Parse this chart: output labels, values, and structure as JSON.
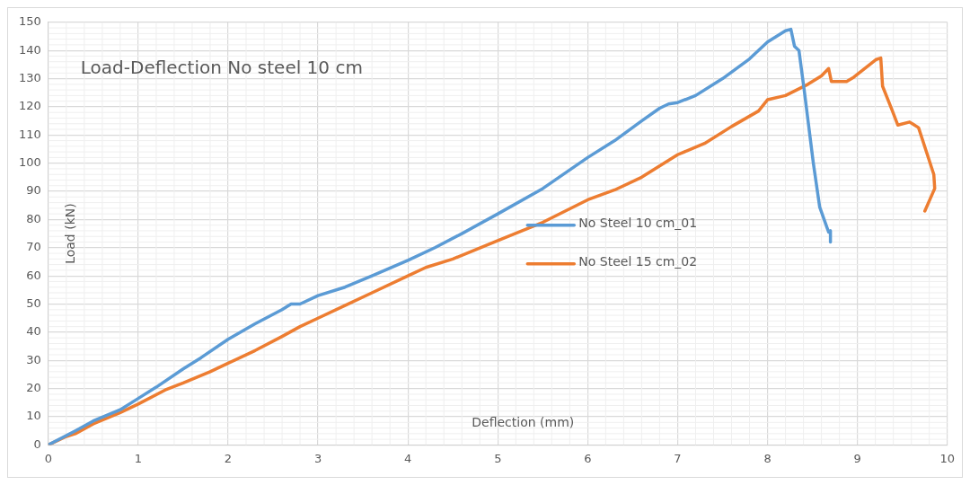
{
  "chart_data": {
    "type": "line",
    "title": "Load-Deflection No steel 10 cm",
    "xlabel": "Deflection (mm)",
    "ylabel": "Load (kN)",
    "xlim": [
      0,
      10
    ],
    "xticks": [
      0,
      1,
      2,
      3,
      4,
      5,
      6,
      7,
      8,
      9,
      10
    ],
    "ylim": [
      0,
      150
    ],
    "yticks": [
      0,
      10,
      20,
      30,
      40,
      50,
      60,
      70,
      80,
      90,
      100,
      110,
      120,
      130,
      140,
      150
    ],
    "grid": true,
    "legend": "center",
    "marker": "none",
    "line_style": "solid",
    "series": [
      {
        "name": "No Steel 10 cm_01",
        "color": "#5b9bd5",
        "x": [
          0,
          0.3,
          0.5,
          0.8,
          1.0,
          1.2,
          1.5,
          1.7,
          2.0,
          2.3,
          2.6,
          2.7,
          2.8,
          3.0,
          3.3,
          3.6,
          4.0,
          4.3,
          4.6,
          5.0,
          5.5,
          6.0,
          6.3,
          6.6,
          6.8,
          6.9,
          7.0,
          7.2,
          7.5,
          7.8,
          8.0,
          8.2,
          8.26,
          8.3,
          8.35,
          8.41,
          8.51,
          8.58,
          8.68,
          8.7,
          8.7
        ],
        "values": [
          0,
          5,
          8.5,
          12.5,
          16.5,
          20.5,
          27,
          31,
          37.5,
          43,
          48,
          50,
          50,
          53,
          56,
          60,
          65.5,
          70,
          75,
          82,
          91,
          102,
          108,
          115,
          119.5,
          121,
          121.5,
          124,
          130,
          137,
          143,
          147,
          147.5,
          141.5,
          140,
          125.5,
          100,
          84.5,
          75.5,
          76,
          72
        ]
      },
      {
        "name": "No Steel 15 cm_02",
        "color": "#ed7d31",
        "x": [
          0,
          0.2,
          0.3,
          0.5,
          0.8,
          1.0,
          1.3,
          1.5,
          1.8,
          2.0,
          2.3,
          2.6,
          2.8,
          3.0,
          3.3,
          3.6,
          4.0,
          4.2,
          4.5,
          5.0,
          5.5,
          6.0,
          6.3,
          6.6,
          6.9,
          7.0,
          7.3,
          7.6,
          7.9,
          8.0,
          8.2,
          8.45,
          8.6,
          8.68,
          8.71,
          8.88,
          8.96,
          9.21,
          9.26,
          9.28,
          9.38,
          9.45,
          9.58,
          9.68,
          9.85,
          9.86,
          9.75
        ],
        "values": [
          0,
          3,
          4,
          7.5,
          11.5,
          14.5,
          19.5,
          22,
          26,
          29,
          33.5,
          38.5,
          42,
          45,
          49.5,
          54,
          60,
          63,
          66,
          72.5,
          79,
          87,
          90.5,
          95,
          101,
          103,
          107,
          113,
          118.5,
          122.5,
          124,
          128,
          131,
          133.6,
          129,
          129,
          130.5,
          136.8,
          137.3,
          127.3,
          119.3,
          113.5,
          114.6,
          112.6,
          96,
          91,
          83
        ]
      }
    ]
  }
}
